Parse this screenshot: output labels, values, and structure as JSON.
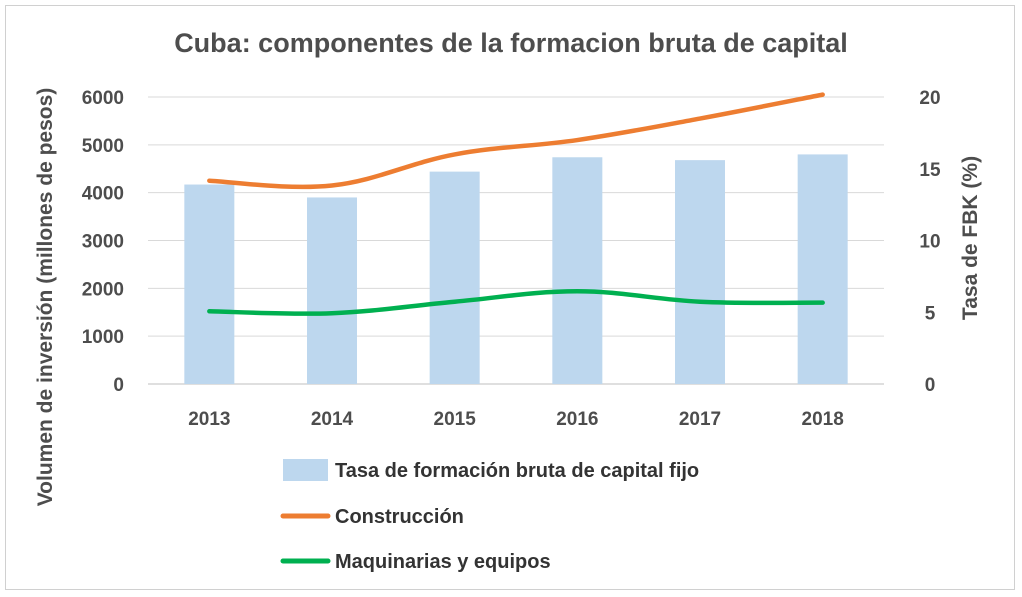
{
  "chart_data": {
    "type": "bar+line",
    "title": "Cuba: componentes de la formacion bruta de capital",
    "categories": [
      "2013",
      "2014",
      "2015",
      "2016",
      "2017",
      "2018"
    ],
    "ylabel_left": "Volumen de inversión (millones de pesos)",
    "ylabel_right": "Tasa de FBK (%)",
    "ylim_left": [
      0,
      6000
    ],
    "ylim_right": [
      0,
      20
    ],
    "yticks_left": [
      "0",
      "1000",
      "2000",
      "3000",
      "4000",
      "5000",
      "6000"
    ],
    "yticks_right": [
      "0",
      "5",
      "10",
      "15",
      "20"
    ],
    "grid": true,
    "legend_position": "bottom",
    "series": [
      {
        "name": "Tasa de formación bruta de capital fijo",
        "type": "bar",
        "axis": "right",
        "color": "#bdd7ee",
        "values": [
          13.9,
          13.0,
          14.8,
          15.8,
          15.6,
          16.0
        ]
      },
      {
        "name": "Construcción",
        "type": "line",
        "axis": "left",
        "color": "#ed7d31",
        "values": [
          4250,
          4150,
          4800,
          5100,
          5550,
          6050
        ]
      },
      {
        "name": "Maquinarias y equipos",
        "type": "line",
        "axis": "left",
        "color": "#00b050",
        "values": [
          1520,
          1480,
          1720,
          1940,
          1720,
          1700
        ]
      }
    ]
  }
}
